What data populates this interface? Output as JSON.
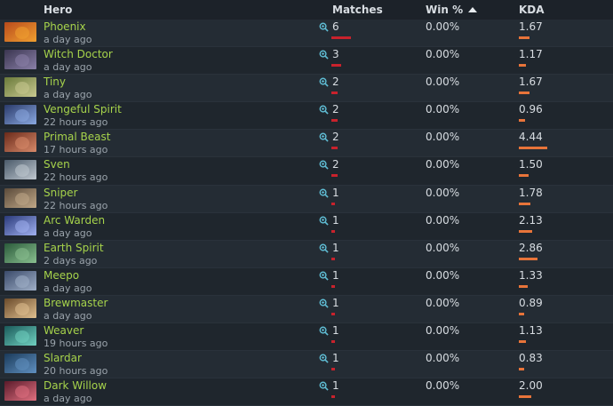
{
  "header": {
    "hero": "Hero",
    "matches": "Matches",
    "win": "Win %",
    "kda": "KDA"
  },
  "colors": {
    "hero_name": "#a6d34b",
    "matches_bar": "#c8222c",
    "kda_bar": "#e8743a",
    "icon": "#5fbcd3"
  },
  "rows": [
    {
      "hero": "Phoenix",
      "time": "a day ago",
      "matches": "6",
      "win": "0.00%",
      "kda": "1.67",
      "matches_n": 6,
      "kda_n": 1.67,
      "c1": "#b84a1c",
      "c2": "#f0a030"
    },
    {
      "hero": "Witch Doctor",
      "time": "a day ago",
      "matches": "3",
      "win": "0.00%",
      "kda": "1.17",
      "matches_n": 3,
      "kda_n": 1.17,
      "c1": "#3a3550",
      "c2": "#8a80a8"
    },
    {
      "hero": "Tiny",
      "time": "a day ago",
      "matches": "2",
      "win": "0.00%",
      "kda": "1.67",
      "matches_n": 2,
      "kda_n": 1.67,
      "c1": "#6a7a3a",
      "c2": "#c8c890"
    },
    {
      "hero": "Vengeful Spirit",
      "time": "22 hours ago",
      "matches": "2",
      "win": "0.00%",
      "kda": "0.96",
      "matches_n": 2,
      "kda_n": 0.96,
      "c1": "#2a3a6a",
      "c2": "#8aa8e0"
    },
    {
      "hero": "Primal Beast",
      "time": "17 hours ago",
      "matches": "2",
      "win": "0.00%",
      "kda": "4.44",
      "matches_n": 2,
      "kda_n": 4.44,
      "c1": "#6a2a1a",
      "c2": "#d88a6a"
    },
    {
      "hero": "Sven",
      "time": "22 hours ago",
      "matches": "2",
      "win": "0.00%",
      "kda": "1.50",
      "matches_n": 2,
      "kda_n": 1.5,
      "c1": "#4a5a6a",
      "c2": "#c0c8d0"
    },
    {
      "hero": "Sniper",
      "time": "22 hours ago",
      "matches": "1",
      "win": "0.00%",
      "kda": "1.78",
      "matches_n": 1,
      "kda_n": 1.78,
      "c1": "#5a4a3a",
      "c2": "#c0a888"
    },
    {
      "hero": "Arc Warden",
      "time": "a day ago",
      "matches": "1",
      "win": "0.00%",
      "kda": "2.13",
      "matches_n": 1,
      "kda_n": 2.13,
      "c1": "#2a3a7a",
      "c2": "#a0b0f0"
    },
    {
      "hero": "Earth Spirit",
      "time": "2 days ago",
      "matches": "1",
      "win": "0.00%",
      "kda": "2.86",
      "matches_n": 1,
      "kda_n": 2.86,
      "c1": "#2a5a3a",
      "c2": "#8ac090"
    },
    {
      "hero": "Meepo",
      "time": "a day ago",
      "matches": "1",
      "win": "0.00%",
      "kda": "1.33",
      "matches_n": 1,
      "kda_n": 1.33,
      "c1": "#3a4a6a",
      "c2": "#a0b0c8"
    },
    {
      "hero": "Brewmaster",
      "time": "a day ago",
      "matches": "1",
      "win": "0.00%",
      "kda": "0.89",
      "matches_n": 1,
      "kda_n": 0.89,
      "c1": "#6a4a2a",
      "c2": "#e0c090"
    },
    {
      "hero": "Weaver",
      "time": "19 hours ago",
      "matches": "1",
      "win": "0.00%",
      "kda": "1.13",
      "matches_n": 1,
      "kda_n": 1.13,
      "c1": "#1a5a5a",
      "c2": "#70d0c0"
    },
    {
      "hero": "Slardar",
      "time": "20 hours ago",
      "matches": "1",
      "win": "0.00%",
      "kda": "0.83",
      "matches_n": 1,
      "kda_n": 0.83,
      "c1": "#1a3a5a",
      "c2": "#6090c0"
    },
    {
      "hero": "Dark Willow",
      "time": "a day ago",
      "matches": "1",
      "win": "0.00%",
      "kda": "2.00",
      "matches_n": 1,
      "kda_n": 2.0,
      "c1": "#5a1a2a",
      "c2": "#e07080"
    }
  ]
}
